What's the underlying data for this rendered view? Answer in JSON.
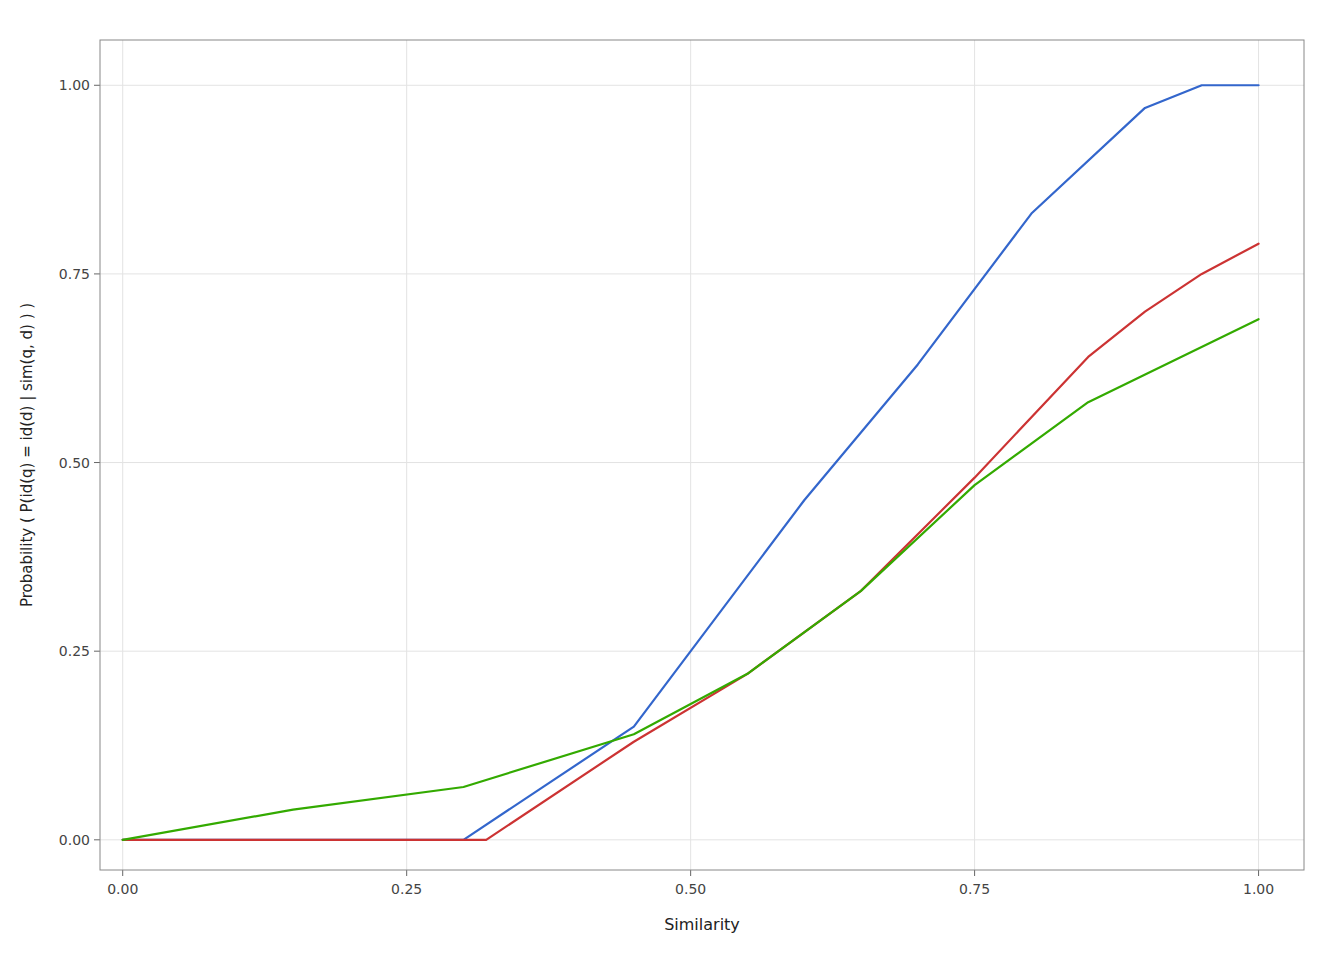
{
  "chart_data": {
    "type": "line",
    "xlabel": "Similarity",
    "ylabel": "Probability ( P(id(q) = id(d) | sim(q, d) ) )",
    "xlim": [
      -0.02,
      1.04
    ],
    "ylim": [
      -0.04,
      1.06
    ],
    "xticks": [
      {
        "value": 0.0,
        "label": "0.00"
      },
      0.25,
      {
        "value": 0.5,
        "label": "0.50"
      },
      0.75,
      {
        "value": 1.0,
        "label": "1.00"
      }
    ],
    "yticks": [
      {
        "value": 0.0,
        "label": "0.00"
      },
      0.25,
      {
        "value": 0.5,
        "label": "0.50"
      },
      0.75,
      {
        "value": 1.0,
        "label": "1.00"
      }
    ],
    "grid": true,
    "series": [
      {
        "color": "#3366CC",
        "x": [
          0.0,
          0.1,
          0.2,
          0.3,
          0.45,
          0.6,
          0.7,
          0.8,
          0.9,
          0.95,
          1.0
        ],
        "values": [
          0.0,
          0.0,
          0.0,
          0.0,
          0.15,
          0.45,
          0.63,
          0.83,
          0.97,
          1.0,
          1.0
        ]
      },
      {
        "color": "#CC3333",
        "x": [
          0.0,
          0.1,
          0.2,
          0.3,
          0.32,
          0.45,
          0.55,
          0.65,
          0.75,
          0.85,
          0.9,
          0.95,
          1.0
        ],
        "values": [
          0.0,
          0.0,
          0.0,
          0.0,
          0.0,
          0.13,
          0.22,
          0.33,
          0.48,
          0.64,
          0.7,
          0.75,
          0.79
        ]
      },
      {
        "color": "#33AA00",
        "x": [
          0.0,
          0.15,
          0.3,
          0.45,
          0.55,
          0.65,
          0.75,
          0.85,
          1.0
        ],
        "values": [
          0.0,
          0.04,
          0.07,
          0.14,
          0.22,
          0.33,
          0.47,
          0.58,
          0.69
        ]
      }
    ]
  }
}
